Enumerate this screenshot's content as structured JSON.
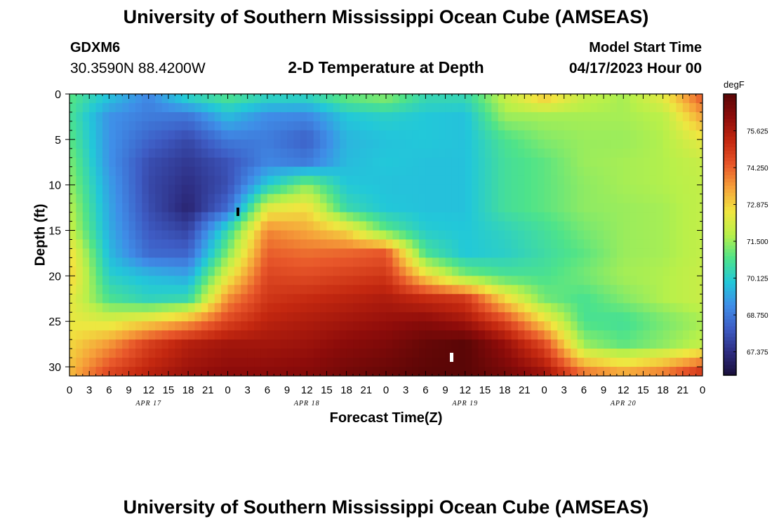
{
  "header": {
    "title": "University of Southern Mississippi Ocean Cube (AMSEAS)",
    "station_id": "GDXM6",
    "coords": "30.3590N  88.4200W",
    "plot_title": "2-D Temperature at Depth",
    "model_start_label": "Model Start Time",
    "model_start_value": "04/17/2023 Hour 00"
  },
  "footer": {
    "title": "University of Southern Mississippi Ocean Cube (AMSEAS)"
  },
  "chart_data": {
    "type": "heatmap",
    "title": "2-D Temperature at Depth",
    "xlabel": "Forecast Time(Z)",
    "ylabel": "Depth (ft)",
    "x_tick_labels": [
      "0",
      "3",
      "6",
      "9",
      "12",
      "15",
      "18",
      "21",
      "0",
      "3",
      "6",
      "9",
      "12",
      "15",
      "18",
      "21",
      "0",
      "3",
      "6",
      "9",
      "12",
      "15",
      "18",
      "21",
      "0",
      "3",
      "6",
      "9",
      "12",
      "15",
      "18",
      "21",
      "0"
    ],
    "day_labels": [
      {
        "label": "APR 17",
        "hour": 12
      },
      {
        "label": "APR 18",
        "hour": 36
      },
      {
        "label": "APR 19",
        "hour": 60
      },
      {
        "label": "APR 20",
        "hour": 84
      }
    ],
    "xlim": [
      0,
      96
    ],
    "ylim": [
      31,
      0
    ],
    "y_ticks": [
      0,
      5,
      10,
      15,
      20,
      25,
      30
    ],
    "colorbar": {
      "unit": "degF",
      "range": [
        66.5,
        77.0
      ],
      "ticks": [
        "67.375",
        "68.750",
        "70.125",
        "71.500",
        "72.875",
        "74.250",
        "75.625"
      ],
      "tick_values": [
        67.375,
        68.75,
        70.125,
        71.5,
        72.875,
        74.25,
        75.625
      ],
      "colors": [
        "#1a0f3a",
        "#2d2c80",
        "#3e5cc4",
        "#3f8ee8",
        "#22c8d9",
        "#4ee38a",
        "#b8f04a",
        "#f0e640",
        "#f6a23a",
        "#e8572a",
        "#c42810",
        "#8e0c0a",
        "#5a0606"
      ]
    },
    "hours": [
      0,
      6,
      12,
      18,
      24,
      30,
      36,
      42,
      48,
      54,
      60,
      66,
      72,
      78,
      84,
      90,
      96
    ],
    "depths": [
      0,
      2.5,
      5,
      7.5,
      10,
      12.5,
      15,
      17.5,
      20,
      22.5,
      25,
      27.5,
      31
    ],
    "temperature": [
      [
        71.0,
        70.0,
        69.0,
        70.5,
        71.0,
        70.5,
        70.5,
        71.2,
        71.5,
        70.5,
        70.5,
        72.0,
        73.2,
        72.0,
        71.6,
        72.5,
        74.5
      ],
      [
        70.8,
        69.2,
        68.8,
        68.7,
        69.8,
        69.1,
        69.0,
        70.0,
        70.2,
        70.0,
        69.9,
        71.5,
        71.6,
        71.6,
        71.6,
        71.8,
        73.5
      ],
      [
        71.0,
        69.2,
        68.4,
        67.9,
        68.8,
        68.8,
        68.3,
        69.7,
        69.9,
        70.0,
        69.9,
        70.8,
        71.3,
        71.5,
        71.5,
        71.7,
        72.5
      ],
      [
        71.3,
        69.2,
        68.0,
        67.6,
        68.1,
        69.0,
        68.8,
        69.8,
        70.0,
        69.9,
        69.9,
        70.7,
        71.0,
        71.5,
        71.6,
        71.7,
        72.0
      ],
      [
        71.5,
        69.4,
        67.9,
        67.4,
        68.0,
        70.1,
        71.4,
        70.0,
        69.9,
        69.9,
        69.9,
        70.7,
        71.0,
        71.4,
        71.6,
        71.7,
        71.9
      ],
      [
        71.8,
        69.5,
        68.0,
        67.2,
        68.5,
        72.3,
        72.7,
        70.5,
        70.0,
        69.9,
        69.9,
        70.7,
        71.0,
        71.4,
        71.5,
        71.6,
        71.9
      ],
      [
        72.0,
        69.6,
        68.2,
        67.8,
        70.5,
        73.8,
        73.4,
        72.8,
        71.0,
        70.1,
        70.0,
        70.3,
        70.7,
        71.2,
        71.5,
        71.6,
        71.9
      ],
      [
        72.8,
        69.8,
        68.5,
        68.4,
        71.3,
        74.3,
        74.1,
        74.2,
        74.4,
        70.8,
        70.0,
        70.2,
        70.6,
        71.0,
        71.5,
        71.6,
        71.9
      ],
      [
        73.0,
        70.2,
        69.8,
        69.5,
        72.4,
        74.7,
        74.6,
        74.8,
        75.0,
        72.8,
        71.3,
        70.8,
        70.8,
        71.2,
        71.6,
        71.7,
        72.0
      ],
      [
        72.5,
        70.8,
        70.3,
        70.5,
        73.7,
        75.0,
        75.2,
        75.4,
        75.6,
        75.2,
        74.9,
        72.8,
        71.2,
        70.8,
        71.3,
        71.7,
        72.0
      ],
      [
        72.5,
        72.3,
        72.8,
        73.5,
        74.7,
        75.4,
        75.6,
        75.8,
        76.0,
        76.2,
        75.8,
        74.7,
        72.8,
        70.8,
        70.7,
        71.2,
        71.6
      ],
      [
        72.8,
        73.6,
        74.8,
        75.5,
        75.8,
        75.8,
        75.9,
        76.2,
        76.4,
        76.8,
        77.0,
        76.0,
        74.6,
        71.5,
        71.0,
        71.4,
        71.9
      ],
      [
        73.2,
        74.8,
        75.5,
        76.0,
        76.2,
        76.2,
        76.3,
        76.6,
        76.8,
        77.0,
        77.0,
        76.6,
        76.0,
        74.3,
        73.7,
        74.2,
        75.4
      ]
    ]
  }
}
